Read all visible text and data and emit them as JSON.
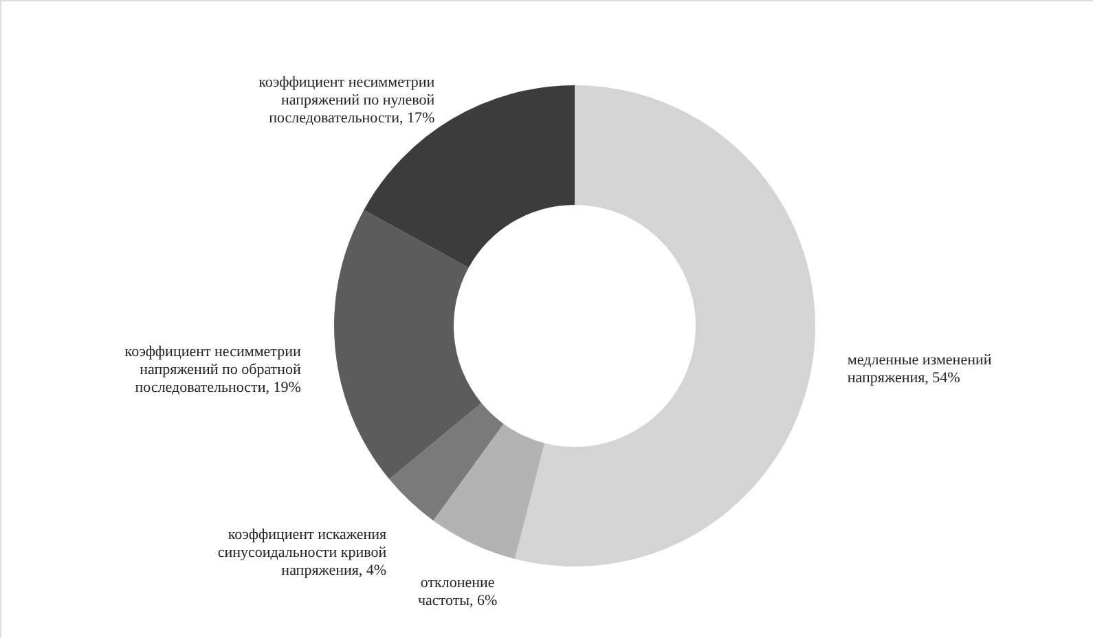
{
  "chart_data": {
    "type": "donut",
    "categories": [
      "медленные изменений напряжения",
      "отклонение частоты",
      "коэффициент искажения синусоидальности кривой напряжения",
      "коэффициент несимметрии напряжений по обратной последовательности",
      "коэффициент несимметрии напряжений по нулевой последовательности"
    ],
    "values": [
      54,
      6,
      4,
      19,
      17
    ],
    "value_labels": [
      "54%",
      "6%",
      "4%",
      "19%",
      "17%"
    ],
    "colors": [
      "#d4d4d4",
      "#b3b3b3",
      "#7a7a7a",
      "#5c5c5c",
      "#3c3c3c"
    ]
  }
}
